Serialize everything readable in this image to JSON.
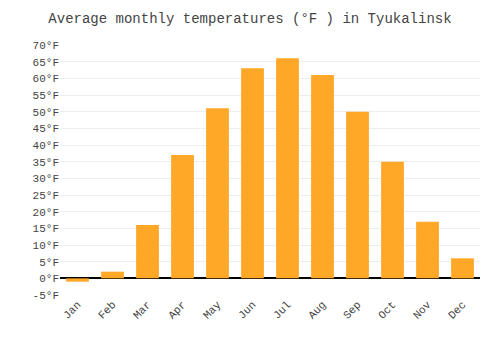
{
  "chart_data": {
    "type": "bar",
    "title": "Average monthly temperatures (°F ) in Tyukalinsk",
    "categories": [
      "Jan",
      "Feb",
      "Mar",
      "Apr",
      "May",
      "Jun",
      "Jul",
      "Aug",
      "Sep",
      "Oct",
      "Nov",
      "Dec"
    ],
    "values": [
      -1,
      2,
      16,
      37,
      51,
      63,
      66,
      61,
      50,
      35,
      17,
      6
    ],
    "color": "#FFA726",
    "ylim": [
      -5,
      70
    ],
    "yticks": [
      {
        "value": -5,
        "label": "-5°F"
      },
      {
        "value": 0,
        "label": "0°F"
      },
      {
        "value": 5,
        "label": "5°F"
      },
      {
        "value": 10,
        "label": "10°F"
      },
      {
        "value": 15,
        "label": "15°F"
      },
      {
        "value": 20,
        "label": "20°F"
      },
      {
        "value": 25,
        "label": "25°F"
      },
      {
        "value": 30,
        "label": "30°F"
      },
      {
        "value": 35,
        "label": "35°F"
      },
      {
        "value": 40,
        "label": "40°F"
      },
      {
        "value": 45,
        "label": "45°F"
      },
      {
        "value": 50,
        "label": "50°F"
      },
      {
        "value": 55,
        "label": "55°F"
      },
      {
        "value": 60,
        "label": "60°F"
      },
      {
        "value": 65,
        "label": "65°F"
      },
      {
        "value": 70,
        "label": "70°F"
      }
    ],
    "grid": true
  }
}
